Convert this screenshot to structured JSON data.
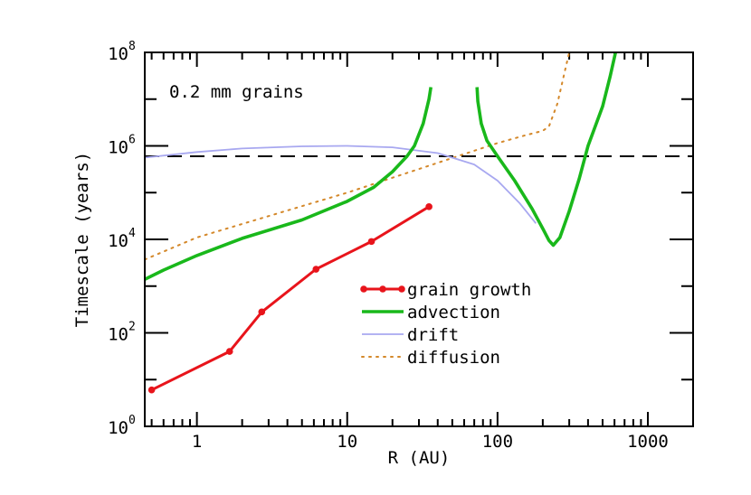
{
  "chart_data": {
    "type": "line",
    "title": "",
    "xlabel": "R (AU)",
    "ylabel": "Timescale (years)",
    "xscale": "log",
    "yscale": "log",
    "xlim": [
      0.45,
      2000
    ],
    "ylim": [
      1,
      100000000
    ],
    "x_ticks": [
      {
        "value": 1,
        "label": "1"
      },
      {
        "value": 10,
        "label": "10"
      },
      {
        "value": 100,
        "label": "100"
      },
      {
        "value": 1000,
        "label": "1000"
      }
    ],
    "y_ticks": [
      {
        "value": 1,
        "base": "10",
        "exp": "0"
      },
      {
        "value": 100,
        "base": "10",
        "exp": "2"
      },
      {
        "value": 10000,
        "base": "10",
        "exp": "4"
      },
      {
        "value": 1000000,
        "base": "10",
        "exp": "6"
      },
      {
        "value": 100000000,
        "base": "10",
        "exp": "8"
      }
    ],
    "annotation": {
      "text": "0.2 mm grains"
    },
    "reference_line": {
      "y": 600000,
      "style": "dashed",
      "color": "#000000"
    },
    "legend": {
      "position": "center-right",
      "items": [
        {
          "label": "grain growth",
          "series": "grain_growth"
        },
        {
          "label": "advection",
          "series": "advection"
        },
        {
          "label": "drift",
          "series": "drift"
        },
        {
          "label": "diffusion",
          "series": "diffusion"
        }
      ]
    },
    "series": [
      {
        "key": "grain_growth",
        "name": "grain growth",
        "color": "#e8141b",
        "style": "solid-markers",
        "points": [
          [
            0.5,
            6
          ],
          [
            1.65,
            40
          ],
          [
            2.7,
            280
          ],
          [
            6.2,
            2300
          ],
          [
            14.5,
            9000
          ],
          [
            35,
            50000
          ]
        ]
      },
      {
        "key": "advection",
        "name": "advection",
        "color": "#19b81b",
        "style": "solid-thick",
        "segments": [
          [
            [
              0.45,
              1400
            ],
            [
              0.6,
              2200
            ],
            [
              1,
              4500
            ],
            [
              2,
              10500
            ],
            [
              5,
              26000
            ],
            [
              10,
              65000
            ],
            [
              15,
              130000
            ],
            [
              20,
              280000
            ],
            [
              25,
              600000
            ],
            [
              28,
              1000000
            ],
            [
              32,
              3000000
            ],
            [
              35,
              10000000
            ],
            [
              36,
              18000000
            ]
          ],
          [
            [
              73,
              18000000
            ],
            [
              74,
              9000000
            ],
            [
              78,
              3000000
            ],
            [
              85,
              1300000
            ],
            [
              100,
              600000
            ],
            [
              130,
              180000
            ],
            [
              170,
              45000
            ],
            [
              200,
              17000
            ],
            [
              220,
              9500
            ],
            [
              235,
              7500
            ],
            [
              260,
              11000
            ],
            [
              300,
              40000
            ],
            [
              350,
              200000
            ],
            [
              400,
              1000000
            ],
            [
              500,
              7000000
            ],
            [
              560,
              30000000
            ],
            [
              610,
              100000000
            ]
          ]
        ]
      },
      {
        "key": "drift",
        "name": "drift",
        "color": "#a8a8f0",
        "style": "solid-thin",
        "points": [
          [
            0.45,
            560000
          ],
          [
            1,
            740000
          ],
          [
            2,
            880000
          ],
          [
            5,
            980000
          ],
          [
            10,
            1000000
          ],
          [
            20,
            930000
          ],
          [
            40,
            700000
          ],
          [
            70,
            400000
          ],
          [
            100,
            180000
          ],
          [
            140,
            60000
          ],
          [
            180,
            22000
          ]
        ]
      },
      {
        "key": "diffusion",
        "name": "diffusion",
        "color": "#d4882a",
        "style": "dotted",
        "points": [
          [
            0.45,
            3700
          ],
          [
            1,
            11000
          ],
          [
            10,
            100000
          ],
          [
            50,
            550000
          ],
          [
            100,
            1150000
          ],
          [
            150,
            1650000
          ],
          [
            200,
            2100000
          ],
          [
            220,
            2600000
          ],
          [
            250,
            8000000
          ],
          [
            275,
            30000000
          ],
          [
            300,
            100000000
          ]
        ]
      }
    ]
  }
}
